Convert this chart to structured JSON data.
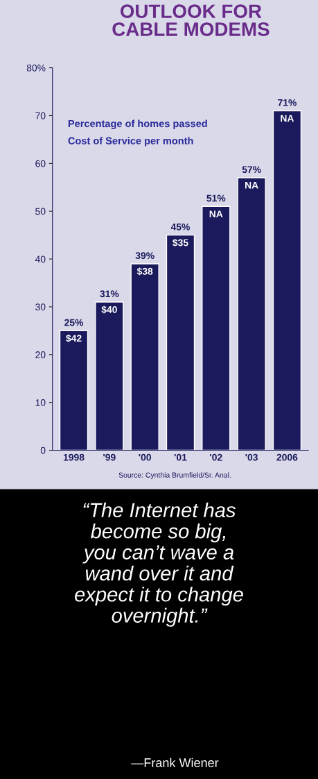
{
  "chart_data": {
    "type": "bar",
    "title": "OUTLOOK FOR\nCABLE MODEMS",
    "categories": [
      "1998",
      "'99",
      "'00",
      "'01",
      "'02",
      "'03",
      "2006"
    ],
    "values": [
      25,
      31,
      39,
      45,
      51,
      57,
      71
    ],
    "value_labels": [
      "25%",
      "31%",
      "39%",
      "45%",
      "51%",
      "57%",
      "71%"
    ],
    "color": "#1b1a5c",
    "ylim": [
      0,
      80
    ],
    "yticks": [
      0,
      10,
      20,
      30,
      40,
      50,
      60,
      70,
      {
        "value": 80,
        "label": "80%"
      }
    ],
    "grid": false,
    "annotations": [
      "Percentage of homes passed",
      "Cost of Service per month",
      "Source: Cynthia Brumfield/Sr. Anal.",
      "“The Internet has\nbecome so big,\nyou can’t wave a\nwand over it and\nexpect it to change\novernight.”",
      "—Frank Wiener",
      {
        "text": "$42",
        "x": "1998",
        "y": 25
      },
      {
        "text": "$40",
        "x": "'99",
        "y": 31
      },
      {
        "text": "$38",
        "x": "'00",
        "y": 39
      },
      {
        "text": "$35",
        "x": "'01",
        "y": 45
      },
      {
        "text": "NA",
        "x": "'02",
        "y": 51
      },
      {
        "text": "NA",
        "x": "'03",
        "y": 57
      },
      {
        "text": "NA",
        "x": "2006",
        "y": 71
      }
    ]
  }
}
